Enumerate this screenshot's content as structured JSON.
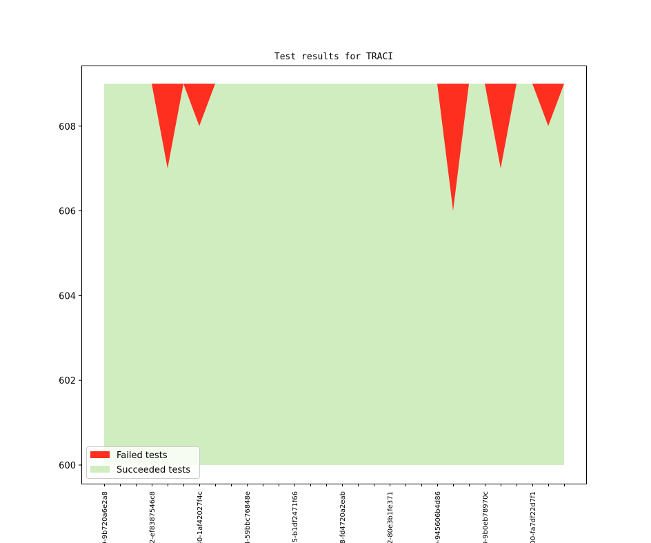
{
  "chart_data": {
    "type": "area",
    "title": "Test results for TRACI",
    "xlabel": "",
    "ylabel": "",
    "ylim": [
      599.6,
      609.4
    ],
    "yticks": [
      600,
      602,
      604,
      606,
      608
    ],
    "x_count": 30,
    "x_tick_labels": [
      {
        "index": 0,
        "label": "9-9b720a6e2a8"
      },
      {
        "index": 3,
        "label": "2-ef8387546c8"
      },
      {
        "index": 6,
        "label": "40-1af42027f4c"
      },
      {
        "index": 9,
        "label": "4-59bbc76848e"
      },
      {
        "index": 12,
        "label": "55-b1df2471f66"
      },
      {
        "index": 15,
        "label": "8-fd4720a2eab"
      },
      {
        "index": 18,
        "label": "2-80e3b1fe371"
      },
      {
        "index": 21,
        "label": "9-945606b4d86"
      },
      {
        "index": 24,
        "label": "9-9b0eb78970c"
      },
      {
        "index": 27,
        "label": "00-fa7df22d7f1"
      }
    ],
    "series": [
      {
        "name": "Failed tests",
        "color": "#ff2f1f",
        "values": [
          0,
          0,
          0,
          0,
          2,
          0,
          1,
          0,
          0,
          0,
          0,
          0,
          0,
          0,
          0,
          0,
          0,
          0,
          0,
          0,
          0,
          0,
          3,
          0,
          0,
          2,
          0,
          0,
          1,
          0
        ]
      },
      {
        "name": "Succeeded tests",
        "color": "#d0edbf",
        "values": [
          609,
          609,
          609,
          609,
          607,
          609,
          608,
          609,
          609,
          609,
          609,
          609,
          609,
          609,
          609,
          609,
          609,
          609,
          609,
          609,
          609,
          609,
          606,
          609,
          609,
          607,
          609,
          609,
          608,
          609
        ]
      }
    ],
    "baseline": 600,
    "total": 609,
    "legend_position": "lower-left"
  }
}
